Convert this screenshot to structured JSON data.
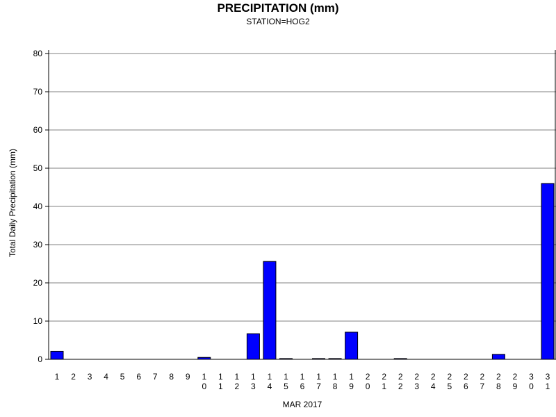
{
  "chart_data": {
    "type": "bar",
    "title": "PRECIPITATION (mm)",
    "subtitle": "STATION=HOG2",
    "xlabel": "MAR 2017",
    "ylabel": "Total Daily Precipitation (mm)",
    "ylim": [
      0,
      80
    ],
    "yticks": [
      0,
      10,
      20,
      30,
      40,
      50,
      60,
      70,
      80
    ],
    "grid": true,
    "categories": [
      "1",
      "2",
      "3",
      "4",
      "5",
      "6",
      "7",
      "8",
      "9",
      "10",
      "11",
      "12",
      "13",
      "14",
      "15",
      "16",
      "17",
      "18",
      "19",
      "20",
      "21",
      "22",
      "23",
      "24",
      "25",
      "26",
      "27",
      "28",
      "29",
      "30",
      "31"
    ],
    "values": [
      2.1,
      0,
      0,
      0,
      0,
      0,
      0,
      0,
      0,
      0.5,
      0,
      0,
      6.7,
      25.6,
      0.2,
      0,
      0.2,
      0.2,
      7.1,
      0,
      0,
      0.2,
      0,
      0,
      0,
      0,
      0,
      1.3,
      0,
      0,
      46.0
    ],
    "bar_color": "#0000ff"
  }
}
